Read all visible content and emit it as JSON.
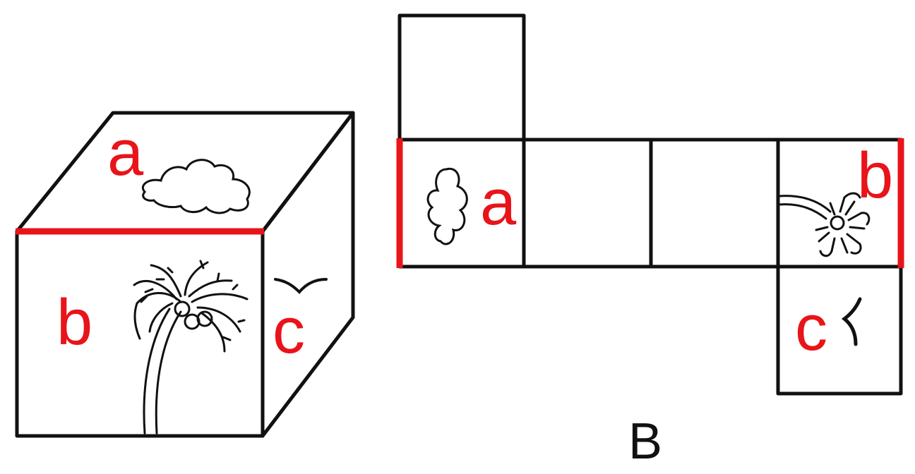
{
  "colors": {
    "line": "#111111",
    "highlight": "#e8141a",
    "background": "#ffffff"
  },
  "cube": {
    "top_face_label": "a",
    "front_face_label": "b",
    "side_face_label": "c",
    "top_face_icon": "cloud-icon",
    "front_face_icon": "palm-tree-icon",
    "side_face_icon": "bird-icon"
  },
  "net": {
    "face_a_label": "a",
    "face_b_label": "b",
    "face_c_label": "c",
    "face_a_icon": "cloud-icon",
    "face_b_icon": "palm-tree-icon",
    "face_c_icon": "bird-icon",
    "option_label": "B"
  }
}
